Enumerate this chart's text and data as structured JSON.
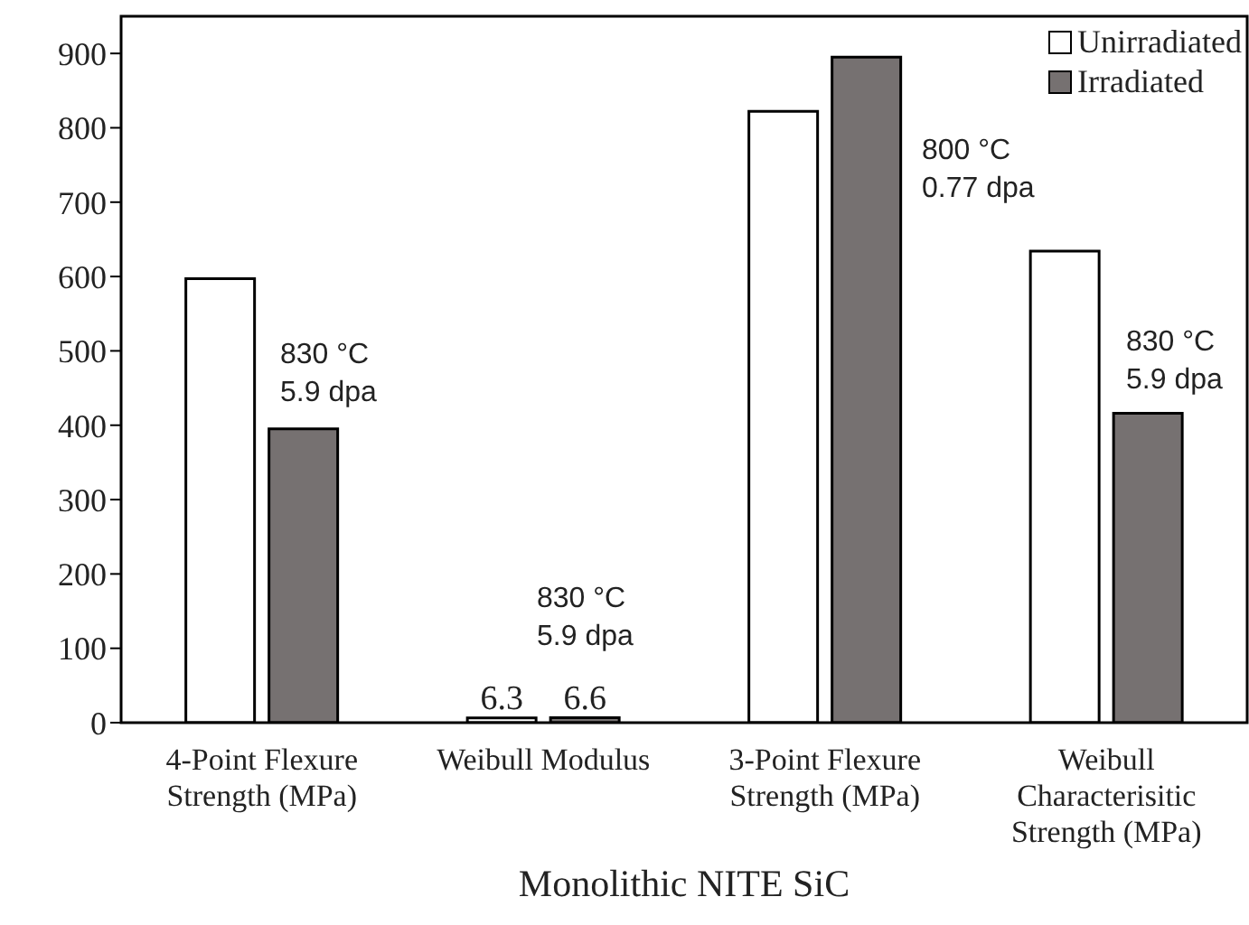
{
  "chart_data": {
    "type": "bar",
    "xlabel": "Monolithic NITE SiC",
    "categories": [
      "4-Point Flexure Strength (MPa)",
      "Weibull Modulus",
      "3-Point Flexure Strength (MPa)",
      "Weibull Characterisitic Strength (MPa)"
    ],
    "series": [
      {
        "name": "Unirradiated",
        "color": "#ffffff",
        "values": [
          597,
          6.3,
          822,
          634
        ],
        "value_labels": [
          null,
          "6.3",
          null,
          null
        ]
      },
      {
        "name": "Irradiated",
        "color": "#767171",
        "values": [
          395,
          6.6,
          895,
          416
        ],
        "value_labels": [
          null,
          "6.6",
          null,
          null
        ]
      }
    ],
    "ylim": [
      0,
      950
    ],
    "yticks": [
      0,
      100,
      200,
      300,
      400,
      500,
      600,
      700,
      800,
      900
    ],
    "grid": false,
    "legend": "top right",
    "annotations": [
      "830 °C\n5.9 dpa",
      "830 °C\n5.9 dpa",
      "800 °C\n0.77 dpa",
      "830 °C\n5.9 dpa"
    ]
  }
}
